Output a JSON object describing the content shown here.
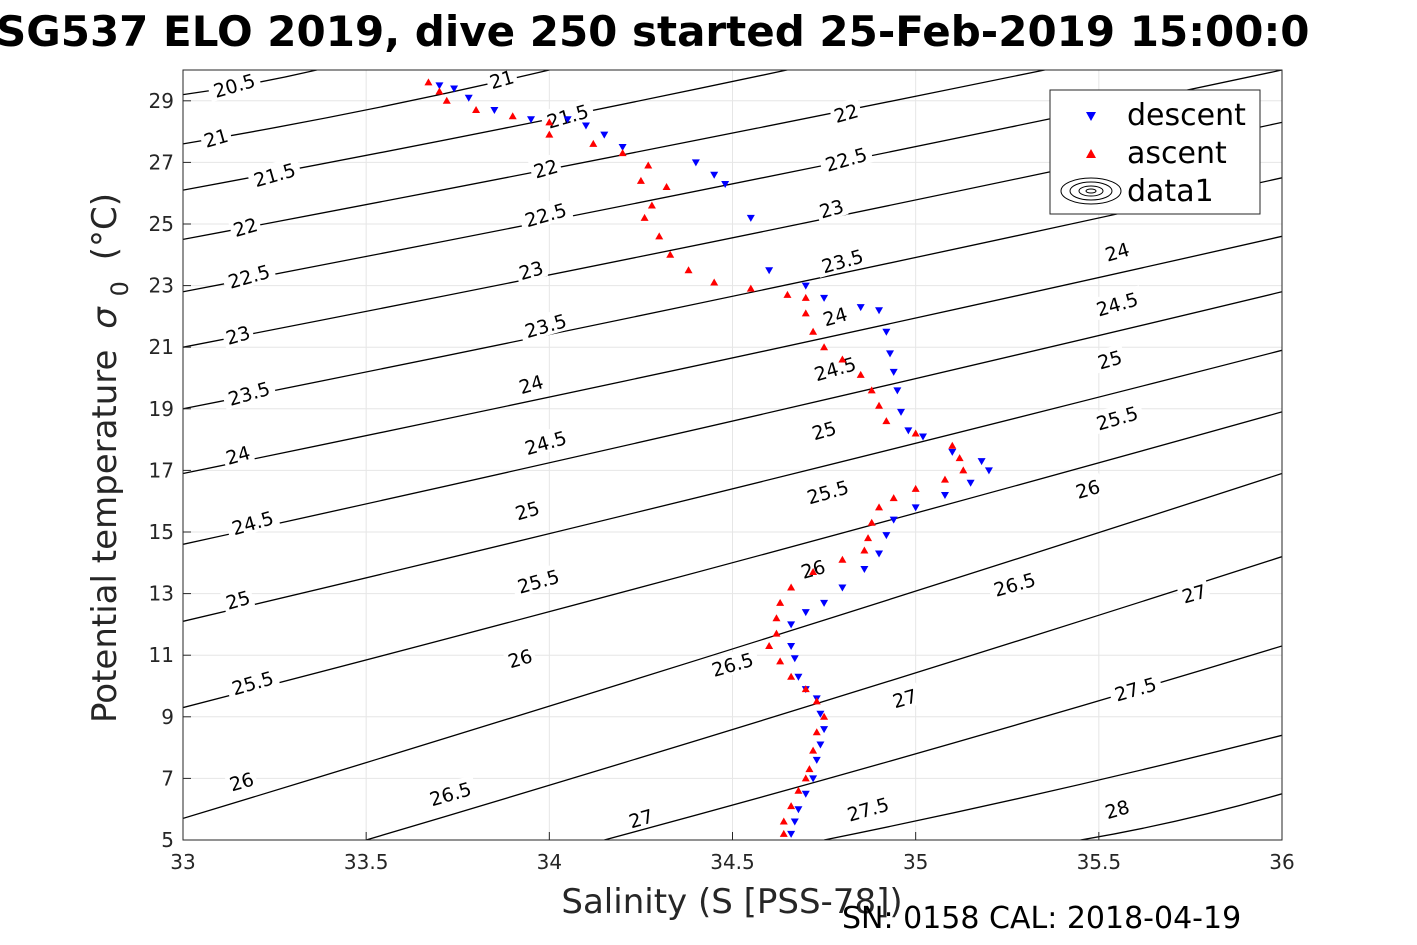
{
  "chart_data": {
    "type": "scatter",
    "title": "SG537 ELO 2019, dive 250 started 25-Feb-2019 15:00:0",
    "xlabel": "Salinity (S [PSS-78])",
    "ylabel": "Potential temperature",
    "ylabel_symbol": "σ",
    "ylabel_subscript": "0",
    "ylabel_units": "(°C)",
    "footer": "SN: 0158  CAL: 2018-04-19",
    "xlim": [
      33,
      36
    ],
    "ylim": [
      5,
      30
    ],
    "grid": true,
    "legend_position": "top-right",
    "x_ticks": [
      {
        "value": 33,
        "label": "33"
      },
      {
        "value": 33.5,
        "label": "33.5"
      },
      {
        "value": 34,
        "label": "34"
      },
      {
        "value": 34.5,
        "label": "34.5"
      },
      {
        "value": 35,
        "label": "35"
      },
      {
        "value": 35.5,
        "label": "35.5"
      },
      {
        "value": 36,
        "label": "36"
      }
    ],
    "y_ticks": [
      {
        "value": 5,
        "label": "5"
      },
      {
        "value": 7,
        "label": "7"
      },
      {
        "value": 9,
        "label": "9"
      },
      {
        "value": 11,
        "label": "11"
      },
      {
        "value": 13,
        "label": "13"
      },
      {
        "value": 15,
        "label": "15"
      },
      {
        "value": 17,
        "label": "17"
      },
      {
        "value": 19,
        "label": "19"
      },
      {
        "value": 21,
        "label": "21"
      },
      {
        "value": 23,
        "label": "23"
      },
      {
        "value": 25,
        "label": "25"
      },
      {
        "value": 27,
        "label": "27"
      },
      {
        "value": 29,
        "label": "29"
      }
    ],
    "series": [
      {
        "name": "descent",
        "marker": "triangle-down",
        "color": "#0000ff",
        "points": [
          [
            33.7,
            29.5
          ],
          [
            33.74,
            29.4
          ],
          [
            33.78,
            29.1
          ],
          [
            33.85,
            28.7
          ],
          [
            33.95,
            28.4
          ],
          [
            34.05,
            28.4
          ],
          [
            34.1,
            28.2
          ],
          [
            34.15,
            27.9
          ],
          [
            34.2,
            27.5
          ],
          [
            34.4,
            27.0
          ],
          [
            34.45,
            26.6
          ],
          [
            34.48,
            26.3
          ],
          [
            34.55,
            25.2
          ],
          [
            34.6,
            23.5
          ],
          [
            34.7,
            23.0
          ],
          [
            34.75,
            22.6
          ],
          [
            34.85,
            22.3
          ],
          [
            34.9,
            22.2
          ],
          [
            34.92,
            21.5
          ],
          [
            34.93,
            20.8
          ],
          [
            34.94,
            20.2
          ],
          [
            34.95,
            19.6
          ],
          [
            34.96,
            18.9
          ],
          [
            34.98,
            18.3
          ],
          [
            35.02,
            18.1
          ],
          [
            35.1,
            17.6
          ],
          [
            35.18,
            17.3
          ],
          [
            35.2,
            17.0
          ],
          [
            35.15,
            16.6
          ],
          [
            35.08,
            16.2
          ],
          [
            35.0,
            15.8
          ],
          [
            34.94,
            15.4
          ],
          [
            34.92,
            14.9
          ],
          [
            34.9,
            14.3
          ],
          [
            34.86,
            13.8
          ],
          [
            34.8,
            13.2
          ],
          [
            34.75,
            12.7
          ],
          [
            34.7,
            12.4
          ],
          [
            34.66,
            12.0
          ],
          [
            34.66,
            11.3
          ],
          [
            34.67,
            10.9
          ],
          [
            34.68,
            10.3
          ],
          [
            34.7,
            9.9
          ],
          [
            34.73,
            9.6
          ],
          [
            34.74,
            9.1
          ],
          [
            34.75,
            8.6
          ],
          [
            34.74,
            8.1
          ],
          [
            34.73,
            7.6
          ],
          [
            34.72,
            7.0
          ],
          [
            34.7,
            6.5
          ],
          [
            34.68,
            6.0
          ],
          [
            34.67,
            5.6
          ],
          [
            34.66,
            5.2
          ]
        ]
      },
      {
        "name": "ascent",
        "marker": "triangle-up",
        "color": "#ff0000",
        "points": [
          [
            33.67,
            29.6
          ],
          [
            33.7,
            29.3
          ],
          [
            33.72,
            29.0
          ],
          [
            33.8,
            28.7
          ],
          [
            33.9,
            28.5
          ],
          [
            34.0,
            28.3
          ],
          [
            34.0,
            27.9
          ],
          [
            34.12,
            27.6
          ],
          [
            34.2,
            27.3
          ],
          [
            34.27,
            26.9
          ],
          [
            34.25,
            26.4
          ],
          [
            34.32,
            26.2
          ],
          [
            34.28,
            25.6
          ],
          [
            34.26,
            25.2
          ],
          [
            34.3,
            24.6
          ],
          [
            34.33,
            24.0
          ],
          [
            34.38,
            23.5
          ],
          [
            34.45,
            23.1
          ],
          [
            34.55,
            22.9
          ],
          [
            34.65,
            22.7
          ],
          [
            34.7,
            22.6
          ],
          [
            34.7,
            22.1
          ],
          [
            34.72,
            21.5
          ],
          [
            34.75,
            21.0
          ],
          [
            34.8,
            20.6
          ],
          [
            34.85,
            20.1
          ],
          [
            34.88,
            19.6
          ],
          [
            34.9,
            19.1
          ],
          [
            34.92,
            18.6
          ],
          [
            35.0,
            18.2
          ],
          [
            35.1,
            17.8
          ],
          [
            35.12,
            17.4
          ],
          [
            35.13,
            17.0
          ],
          [
            35.08,
            16.7
          ],
          [
            35.0,
            16.4
          ],
          [
            34.94,
            16.1
          ],
          [
            34.9,
            15.8
          ],
          [
            34.88,
            15.3
          ],
          [
            34.87,
            14.8
          ],
          [
            34.86,
            14.4
          ],
          [
            34.8,
            14.1
          ],
          [
            34.72,
            13.7
          ],
          [
            34.66,
            13.2
          ],
          [
            34.63,
            12.7
          ],
          [
            34.62,
            12.2
          ],
          [
            34.62,
            11.7
          ],
          [
            34.6,
            11.3
          ],
          [
            34.63,
            10.8
          ],
          [
            34.66,
            10.3
          ],
          [
            34.7,
            9.9
          ],
          [
            34.73,
            9.5
          ],
          [
            34.75,
            9.0
          ],
          [
            34.73,
            8.5
          ],
          [
            34.72,
            7.9
          ],
          [
            34.71,
            7.3
          ],
          [
            34.7,
            7.0
          ],
          [
            34.68,
            6.6
          ],
          [
            34.66,
            6.1
          ],
          [
            34.64,
            5.6
          ],
          [
            34.64,
            5.2
          ]
        ]
      },
      {
        "name": "data1",
        "type": "contour",
        "color": "#000000",
        "description_levels": [
          20.5,
          21,
          21.5,
          22,
          22.5,
          23,
          23.5,
          24,
          24.5,
          25,
          25.5,
          26,
          26.5,
          27,
          27.5,
          28
        ]
      }
    ],
    "contour_lines": [
      {
        "level": "20.5",
        "x0": 33.0,
        "y0": 29.2,
        "x1": 33.5,
        "y1": 30.4
      },
      {
        "level": "21",
        "x0": 33.0,
        "y0": 27.6,
        "x1": 34.0,
        "y1": 30.0
      },
      {
        "level": "21.5",
        "x0": 33.0,
        "y0": 26.1,
        "x1": 35.0,
        "y1": 30.9
      },
      {
        "level": "22",
        "x0": 33.0,
        "y0": 24.5,
        "x1": 36.0,
        "y1": 31.6
      },
      {
        "level": "22.5",
        "x0": 33.0,
        "y0": 22.8,
        "x1": 36.0,
        "y1": 30.0
      },
      {
        "level": "23",
        "x0": 33.0,
        "y0": 21.0,
        "x1": 36.0,
        "y1": 28.3
      },
      {
        "level": "23.5",
        "x0": 33.0,
        "y0": 19.0,
        "x1": 36.0,
        "y1": 26.5
      },
      {
        "level": "24",
        "x0": 33.0,
        "y0": 16.9,
        "x1": 36.0,
        "y1": 24.6
      },
      {
        "level": "24.5",
        "x0": 33.0,
        "y0": 14.6,
        "x1": 36.0,
        "y1": 22.8
      },
      {
        "level": "25",
        "x0": 33.0,
        "y0": 12.1,
        "x1": 36.0,
        "y1": 20.9
      },
      {
        "level": "25.5",
        "x0": 33.0,
        "y0": 9.3,
        "x1": 36.0,
        "y1": 18.9
      },
      {
        "level": "26",
        "x0": 33.0,
        "y0": 5.7,
        "x1": 36.0,
        "y1": 16.9
      },
      {
        "level": "26.5",
        "x0": 33.5,
        "y0": 5.0,
        "x1": 36.0,
        "y1": 14.2
      },
      {
        "level": "27",
        "x0": 34.15,
        "y0": 5.0,
        "x1": 36.0,
        "y1": 11.3
      },
      {
        "level": "27.5",
        "x0": 34.75,
        "y0": 5.0,
        "x1": 36.0,
        "y1": 8.4
      },
      {
        "level": "28",
        "x0": 35.45,
        "y0": 5.0,
        "x1": 36.0,
        "y1": 6.5
      }
    ],
    "contour_labels": [
      {
        "text": "20.5",
        "x": 33.14,
        "y": 29.5
      },
      {
        "text": "21",
        "x": 33.87,
        "y": 29.7
      },
      {
        "text": "21",
        "x": 33.09,
        "y": 27.8
      },
      {
        "text": "21.5",
        "x": 34.05,
        "y": 28.5
      },
      {
        "text": "21.5",
        "x": 33.25,
        "y": 26.6
      },
      {
        "text": "22",
        "x": 34.81,
        "y": 28.6
      },
      {
        "text": "22",
        "x": 33.17,
        "y": 24.9
      },
      {
        "text": "22",
        "x": 33.99,
        "y": 26.8
      },
      {
        "text": "22.5",
        "x": 34.81,
        "y": 27.1
      },
      {
        "text": "22.5",
        "x": 33.18,
        "y": 23.3
      },
      {
        "text": "22.5",
        "x": 33.99,
        "y": 25.3
      },
      {
        "text": "23",
        "x": 34.77,
        "y": 25.5
      },
      {
        "text": "23",
        "x": 33.15,
        "y": 21.4
      },
      {
        "text": "23",
        "x": 33.95,
        "y": 23.5
      },
      {
        "text": "23.5",
        "x": 34.8,
        "y": 23.8
      },
      {
        "text": "23.5",
        "x": 33.18,
        "y": 19.5
      },
      {
        "text": "23.5",
        "x": 33.99,
        "y": 21.7
      },
      {
        "text": "24",
        "x": 34.78,
        "y": 22.0
      },
      {
        "text": "24",
        "x": 35.55,
        "y": 24.1
      },
      {
        "text": "24",
        "x": 33.15,
        "y": 17.5
      },
      {
        "text": "24",
        "x": 33.95,
        "y": 19.8
      },
      {
        "text": "24.5",
        "x": 34.78,
        "y": 20.3
      },
      {
        "text": "24.5",
        "x": 35.55,
        "y": 22.4
      },
      {
        "text": "24.5",
        "x": 33.19,
        "y": 15.3
      },
      {
        "text": "24.5",
        "x": 33.99,
        "y": 17.9
      },
      {
        "text": "25",
        "x": 34.75,
        "y": 18.3
      },
      {
        "text": "25",
        "x": 35.53,
        "y": 20.6
      },
      {
        "text": "25",
        "x": 33.15,
        "y": 12.8
      },
      {
        "text": "25",
        "x": 33.94,
        "y": 15.7
      },
      {
        "text": "25.5",
        "x": 34.76,
        "y": 16.3
      },
      {
        "text": "25.5",
        "x": 35.55,
        "y": 18.7
      },
      {
        "text": "25.5",
        "x": 33.19,
        "y": 10.1
      },
      {
        "text": "25.5",
        "x": 33.97,
        "y": 13.4
      },
      {
        "text": "26",
        "x": 34.72,
        "y": 13.8
      },
      {
        "text": "26",
        "x": 35.47,
        "y": 16.4
      },
      {
        "text": "26",
        "x": 33.16,
        "y": 6.9
      },
      {
        "text": "26",
        "x": 33.92,
        "y": 10.9
      },
      {
        "text": "26.5",
        "x": 34.5,
        "y": 10.7
      },
      {
        "text": "26.5",
        "x": 35.27,
        "y": 13.3
      },
      {
        "text": "26.5",
        "x": 33.73,
        "y": 6.5
      },
      {
        "text": "27",
        "x": 35.76,
        "y": 13.0
      },
      {
        "text": "27",
        "x": 34.97,
        "y": 9.6
      },
      {
        "text": "27",
        "x": 34.25,
        "y": 5.7
      },
      {
        "text": "27.5",
        "x": 35.6,
        "y": 9.9
      },
      {
        "text": "27.5",
        "x": 34.87,
        "y": 6.0
      },
      {
        "text": "28",
        "x": 35.55,
        "y": 6.0
      }
    ]
  }
}
